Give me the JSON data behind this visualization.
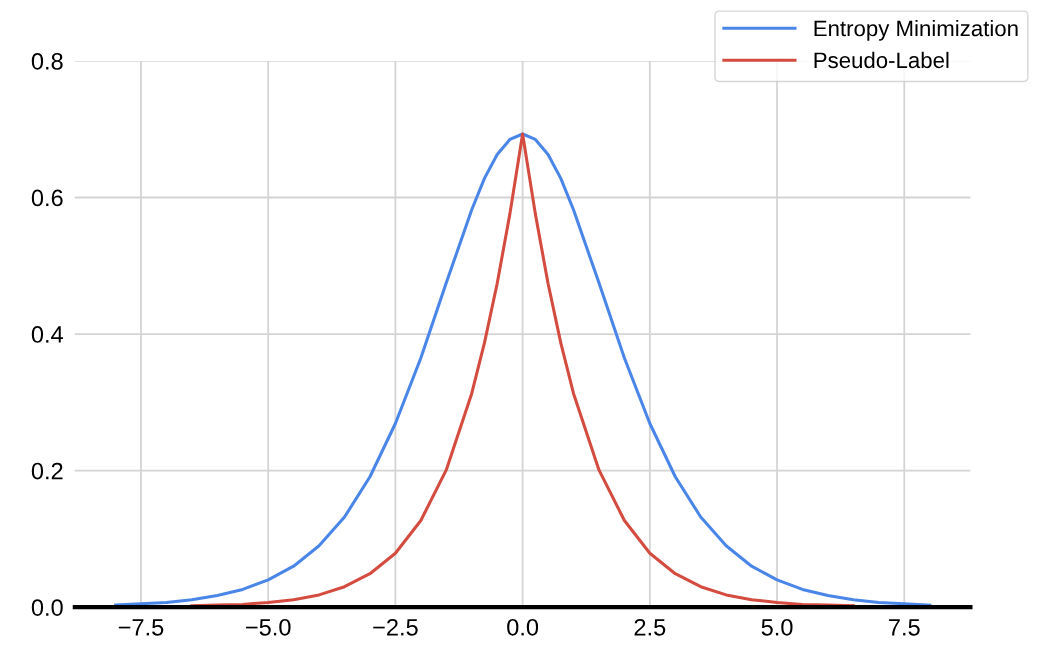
{
  "chart_data": {
    "type": "line",
    "x": [
      -8,
      -7.5,
      -7,
      -6.5,
      -6,
      -5.5,
      -5,
      -4.5,
      -4,
      -3.5,
      -3,
      -2.5,
      -2,
      -1.5,
      -1,
      -0.75,
      -0.5,
      -0.25,
      0,
      0.25,
      0.5,
      0.75,
      1,
      1.5,
      2,
      2.5,
      3,
      3.5,
      4,
      4.5,
      5,
      5.5,
      6,
      6.5,
      7,
      7.5,
      8
    ],
    "series": [
      {
        "name": "Entropy Minimization",
        "color": "#4a86e8",
        "values": [
          0.003,
          0.005,
          0.007,
          0.011,
          0.017,
          0.026,
          0.04,
          0.06,
          0.09,
          0.132,
          0.191,
          0.269,
          0.365,
          0.475,
          0.582,
          0.628,
          0.663,
          0.685,
          0.693,
          0.685,
          0.663,
          0.628,
          0.582,
          0.475,
          0.365,
          0.269,
          0.191,
          0.132,
          0.09,
          0.06,
          0.04,
          0.026,
          0.017,
          0.011,
          0.007,
          0.005,
          0.003
        ]
      },
      {
        "name": "Pseudo-Label",
        "color": "#d44b3f",
        "values": [
          null,
          null,
          null,
          0.002,
          0.003,
          0.004,
          0.007,
          0.011,
          0.018,
          0.03,
          0.049,
          0.079,
          0.127,
          0.201,
          0.313,
          0.387,
          0.474,
          0.576,
          0.693,
          0.576,
          0.474,
          0.387,
          0.313,
          0.201,
          0.127,
          0.079,
          0.049,
          0.03,
          0.018,
          0.011,
          0.007,
          0.004,
          0.003,
          0.002,
          null,
          null,
          null
        ]
      }
    ],
    "xlim": [
      -8.8,
      8.8
    ],
    "xticks": [
      {
        "value": -7.5,
        "label": "−7.5"
      },
      {
        "value": -5,
        "label": "−5.0"
      },
      {
        "value": -2.5,
        "label": "−2.5"
      },
      {
        "value": 0,
        "label": "0.0"
      },
      {
        "value": 2.5,
        "label": "2.5"
      },
      {
        "value": 5,
        "label": "5.0"
      },
      {
        "value": 7.5,
        "label": "7.5"
      }
    ],
    "ylim": [
      0,
      0.8
    ],
    "yticks": [
      {
        "value": 0,
        "label": "0.0"
      },
      {
        "value": 0.2,
        "label": "0.2"
      },
      {
        "value": 0.4,
        "label": "0.4"
      },
      {
        "value": 0.6,
        "label": "0.6"
      },
      {
        "value": 0.8,
        "label": "0.8"
      }
    ],
    "grid": true,
    "legend": "top right",
    "marker": "none",
    "line_style": "solid"
  }
}
